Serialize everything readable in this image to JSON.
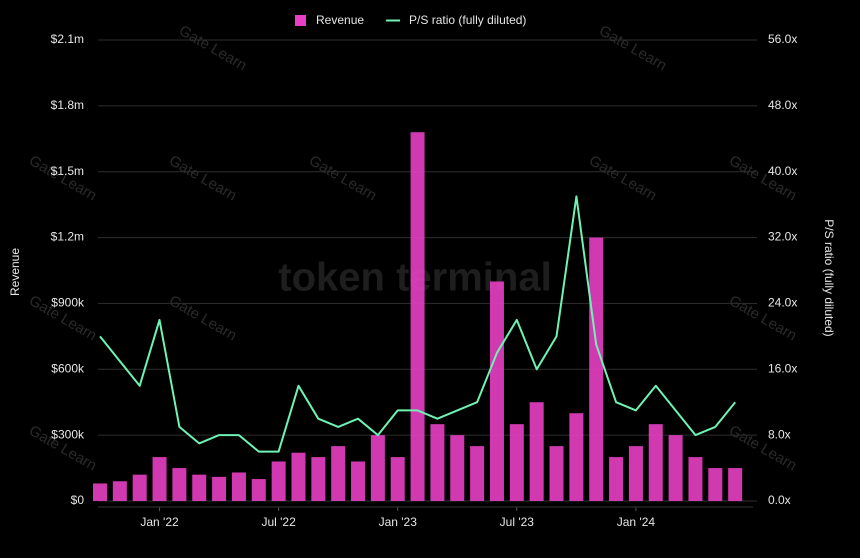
{
  "chart_data": {
    "type": "combo",
    "watermark": "Gate Learn",
    "brand": "token terminal",
    "y_label": "Revenue",
    "y2_label": "P/S ratio (fully diluted)",
    "x": [
      "2021-10",
      "2021-11",
      "2021-12",
      "2022-01",
      "2022-02",
      "2022-03",
      "2022-04",
      "2022-05",
      "2022-06",
      "2022-07",
      "2022-08",
      "2022-09",
      "2022-10",
      "2022-11",
      "2022-12",
      "2023-01",
      "2023-02",
      "2023-03",
      "2023-04",
      "2023-05",
      "2023-06",
      "2023-07",
      "2023-08",
      "2023-09",
      "2023-10",
      "2023-11",
      "2023-12",
      "2024-01",
      "2024-02",
      "2024-03",
      "2024-04",
      "2024-05",
      "2024-06"
    ],
    "xlim": [
      "2021-10",
      "2024-07"
    ],
    "xticks": [
      {
        "value": "2022-01",
        "label": "Jan '22"
      },
      {
        "value": "2022-07",
        "label": "Jul '22"
      },
      {
        "value": "2023-01",
        "label": "Jan '23"
      },
      {
        "value": "2023-07",
        "label": "Jul '23"
      },
      {
        "value": "2024-01",
        "label": "Jan '24"
      }
    ],
    "series": [
      {
        "name": "Revenue",
        "type": "bar",
        "axis": "y",
        "color": "#e83fc4",
        "values": [
          80000,
          90000,
          120000,
          200000,
          150000,
          120000,
          110000,
          130000,
          100000,
          180000,
          220000,
          200000,
          250000,
          180000,
          300000,
          200000,
          1680000,
          350000,
          300000,
          250000,
          1000000,
          350000,
          450000,
          250000,
          400000,
          1200000,
          200000,
          250000,
          350000,
          300000,
          200000,
          150000,
          150000
        ]
      },
      {
        "name": "P/S ratio (fully diluted)",
        "type": "line",
        "axis": "y2",
        "color": "#6ff2b4",
        "values": [
          20,
          17,
          14,
          22,
          9,
          7,
          8,
          8,
          6,
          6,
          14,
          10,
          9,
          10,
          8,
          11,
          11,
          10,
          11,
          12,
          18,
          22,
          16,
          20,
          37,
          19,
          12,
          11,
          14,
          11,
          8,
          9,
          12
        ]
      }
    ],
    "ylim": [
      0,
      2100000
    ],
    "yticks": [
      {
        "value": 0,
        "label": "$0"
      },
      {
        "value": 300000,
        "label": "$300k"
      },
      {
        "value": 600000,
        "label": "$600k"
      },
      {
        "value": 900000,
        "label": "$900k"
      },
      {
        "value": 1200000,
        "label": "$1.2m"
      },
      {
        "value": 1500000,
        "label": "$1.5m"
      },
      {
        "value": 1800000,
        "label": "$1.8m"
      },
      {
        "value": 2100000,
        "label": "$2.1m"
      }
    ],
    "y2lim": [
      0,
      56
    ],
    "y2ticks": [
      {
        "value": 0,
        "label": "0.0x"
      },
      {
        "value": 8,
        "label": "8.0x"
      },
      {
        "value": 16,
        "label": "16.0x"
      },
      {
        "value": 24,
        "label": "24.0x"
      },
      {
        "value": 32,
        "label": "32.0x"
      },
      {
        "value": 40,
        "label": "40.0x"
      },
      {
        "value": 48,
        "label": "48.0x"
      },
      {
        "value": 56,
        "label": "56.0x"
      }
    ],
    "grid": true
  }
}
